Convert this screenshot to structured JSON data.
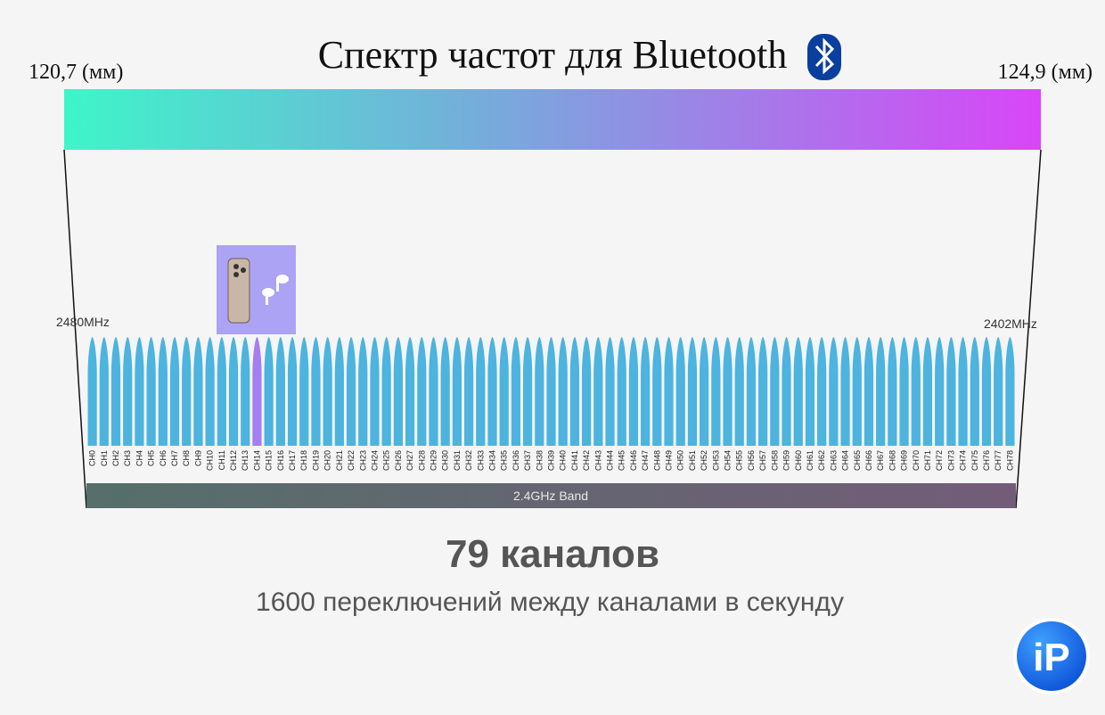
{
  "header": {
    "title": "Спектр частот для Bluetooth",
    "left_label": "120,7 (мм)",
    "right_label": "124,9  (мм)"
  },
  "spectrum": {
    "left_frequency": "2480MHz",
    "right_frequency": "2402MHz",
    "channels": [
      "CH0",
      "CH1",
      "CH2",
      "CH3",
      "CH4",
      "CH5",
      "CH6",
      "CH7",
      "CH8",
      "CH9",
      "CH10",
      "CH11",
      "CH12",
      "CH13",
      "CH14",
      "CH15",
      "CH16",
      "CH17",
      "CH18",
      "CH19",
      "CH20",
      "CH21",
      "CH22",
      "CH23",
      "CH24",
      "CH25",
      "CH26",
      "CH27",
      "CH28",
      "CH29",
      "CH30",
      "CH31",
      "CH32",
      "CH33",
      "CH34",
      "CH35",
      "CH36",
      "CH37",
      "CH38",
      "CH39",
      "CH40",
      "CH41",
      "CH42",
      "CH43",
      "CH44",
      "CH45",
      "CH46",
      "CH47",
      "CH48",
      "CH49",
      "CH50",
      "CH51",
      "CH52",
      "CH53",
      "CH54",
      "CH55",
      "CH56",
      "CH57",
      "CH58",
      "CH59",
      "CH60",
      "CH61",
      "CH62",
      "CH63",
      "CH64",
      "CH65",
      "CH66",
      "CH67",
      "CH68",
      "CH69",
      "CH70",
      "CH71",
      "CH72",
      "CH73",
      "CH74",
      "CH75",
      "CH76",
      "CH77",
      "CH78"
    ],
    "channel_color": "#4db3df",
    "active_channel": "CH14",
    "active_channel_color": "#a47ff0",
    "band_label": "2.4GHz Band"
  },
  "footer": {
    "headline": "79 каналов",
    "subline": "1600 переключений между каналами в секунду",
    "logo": "iP"
  }
}
